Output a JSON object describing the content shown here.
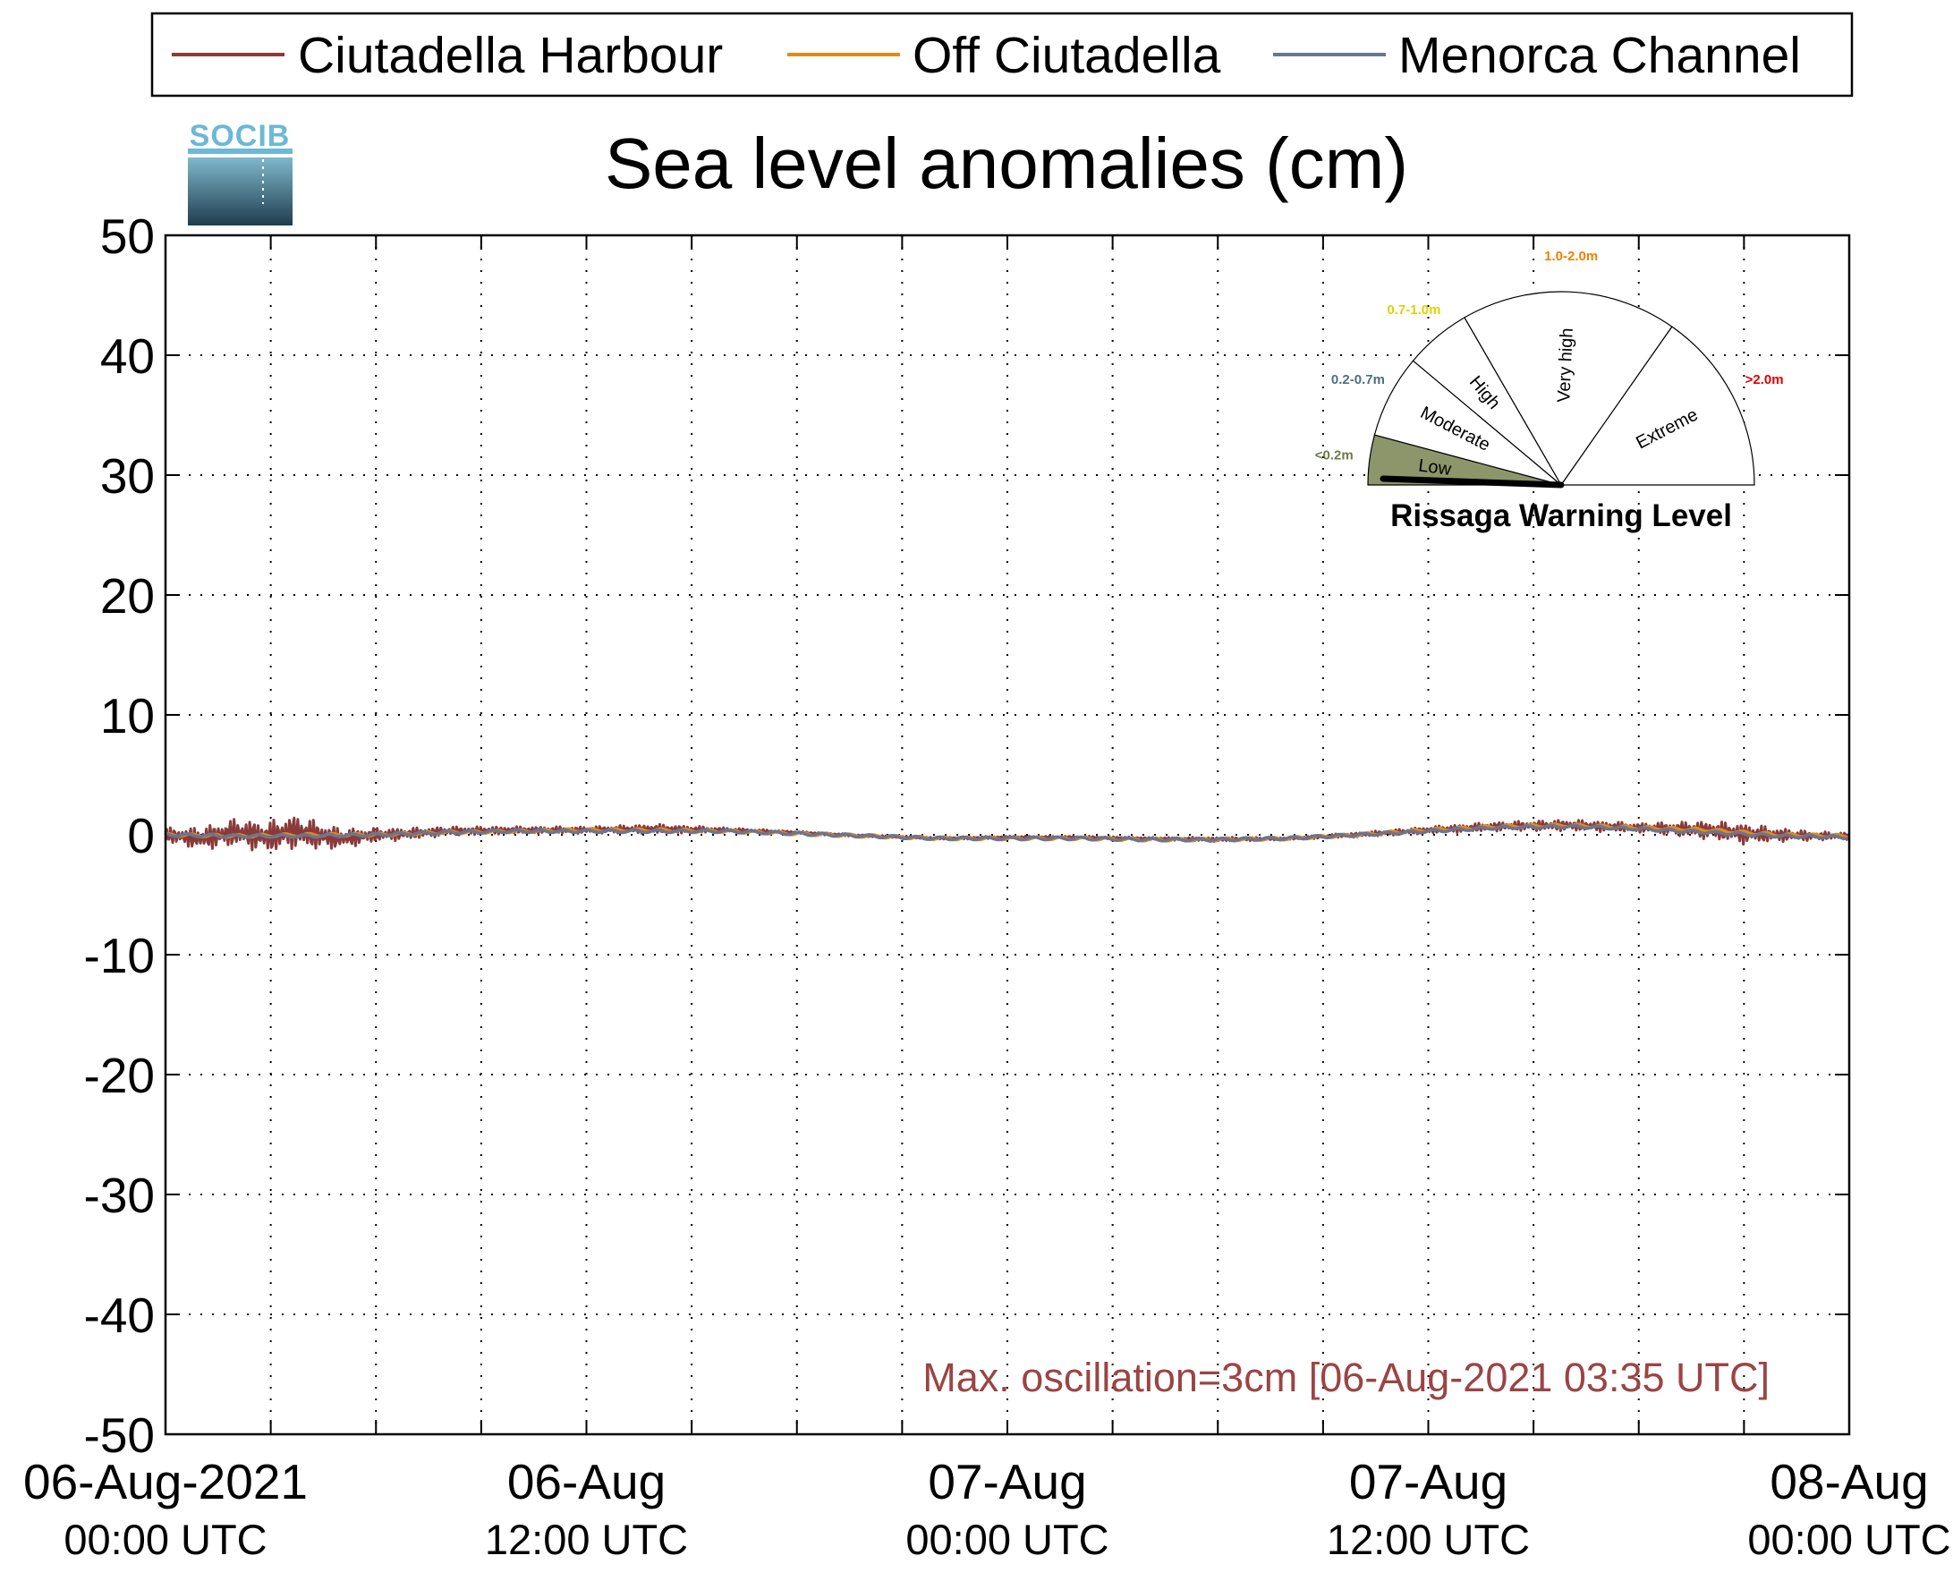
{
  "logo": {
    "text": "SOCIB"
  },
  "chart_data": {
    "type": "line",
    "title": "Sea level anomalies (cm)",
    "xlabel": "",
    "ylabel": "",
    "ylim": [
      -50,
      50
    ],
    "yticks": [
      50,
      40,
      30,
      20,
      10,
      0,
      -10,
      -20,
      -30,
      -40,
      -50
    ],
    "xrange_hours": [
      0,
      48
    ],
    "xtick_labels": [
      {
        "hour": 0,
        "line1": "06-Aug-2021",
        "line2": "00:00 UTC"
      },
      {
        "hour": 12,
        "line1": "06-Aug",
        "line2": "12:00 UTC"
      },
      {
        "hour": 24,
        "line1": "07-Aug",
        "line2": "00:00 UTC"
      },
      {
        "hour": 36,
        "line1": "07-Aug",
        "line2": "12:00 UTC"
      },
      {
        "hour": 48,
        "line1": "08-Aug",
        "line2": "00:00 UTC"
      }
    ],
    "grid": true,
    "legend_position": "top",
    "series": [
      {
        "name": "Ciutadella Harbour",
        "color": "#8b3a3a",
        "x": [
          0,
          1,
          2,
          3,
          3.6,
          4,
          5,
          6,
          7,
          8,
          10,
          12,
          14,
          16,
          18,
          20,
          22,
          24,
          26,
          28,
          30,
          32,
          34,
          36,
          38,
          40,
          42,
          44,
          45,
          46,
          47,
          48
        ],
        "y": [
          0,
          -0.3,
          0.2,
          -0.2,
          0.3,
          0.1,
          -0.3,
          0,
          0.1,
          0.3,
          0.4,
          0.4,
          0.5,
          0.4,
          0.2,
          -0.1,
          -0.3,
          -0.2,
          -0.2,
          -0.3,
          -0.4,
          -0.3,
          0,
          0.4,
          0.7,
          0.8,
          0.6,
          0.4,
          0.1,
          0,
          -0.1,
          -0.1
        ],
        "oscillation": [
          0.6,
          1.0,
          1.2,
          1.4,
          1.5,
          1.4,
          0.9,
          0.6,
          0.5,
          0.4,
          0.3,
          0.3,
          0.4,
          0.2,
          0.1,
          0.1,
          0.1,
          0.1,
          0.1,
          0.1,
          0.2,
          0.1,
          0.2,
          0.3,
          0.4,
          0.5,
          0.4,
          0.8,
          0.9,
          0.6,
          0.4,
          0.3
        ]
      },
      {
        "name": "Off Ciutadella",
        "color": "#e08a1e",
        "x": [
          0,
          2,
          4,
          6,
          8,
          10,
          12,
          14,
          16,
          18,
          20,
          22,
          24,
          26,
          28,
          30,
          32,
          34,
          36,
          38,
          40,
          42,
          44,
          46,
          48
        ],
        "y": [
          0,
          -0.1,
          0,
          0,
          0.2,
          0.3,
          0.4,
          0.4,
          0.3,
          0.1,
          -0.1,
          -0.3,
          -0.3,
          -0.3,
          -0.4,
          -0.4,
          -0.3,
          0,
          0.4,
          0.7,
          0.8,
          0.6,
          0.4,
          0,
          -0.1
        ]
      },
      {
        "name": "Menorca Channel",
        "color": "#6b7591",
        "x": [
          0,
          2,
          4,
          6,
          8,
          10,
          12,
          14,
          16,
          18,
          20,
          22,
          24,
          26,
          28,
          30,
          32,
          34,
          36,
          38,
          40,
          42,
          44,
          46,
          48
        ],
        "y": [
          0,
          -0.1,
          -0.1,
          0,
          0.2,
          0.3,
          0.3,
          0.3,
          0.3,
          0.1,
          -0.1,
          -0.3,
          -0.3,
          -0.3,
          -0.4,
          -0.4,
          -0.3,
          0,
          0.3,
          0.6,
          0.7,
          0.5,
          0.2,
          -0.1,
          -0.2
        ]
      }
    ],
    "annotation": {
      "text": "Max. oscillation=3cm [06-Aug-2021 03:35 UTC]",
      "color": "#9b4444",
      "position": "bottom-right"
    }
  },
  "warning_gauge": {
    "title": "Rissaga Warning Level",
    "current_level": "Low",
    "levels": [
      {
        "name": "Low",
        "range": "<0.2m",
        "range_color": "#6e7a48",
        "fill": "#8c966a",
        "active": true
      },
      {
        "name": "Moderate",
        "range": "0.2-0.7m",
        "range_color": "#4d7080",
        "fill": "#ffffff",
        "active": false
      },
      {
        "name": "High",
        "range": "0.7-1.0m",
        "range_color": "#e6d000",
        "fill": "#ffffff",
        "active": false
      },
      {
        "name": "Very high",
        "range": "1.0-2.0m",
        "range_color": "#f08000",
        "fill": "#ffffff",
        "active": false
      },
      {
        "name": "Extreme",
        "range": ">2.0m",
        "range_color": "#e00000",
        "fill": "#ffffff",
        "active": false
      }
    ]
  }
}
